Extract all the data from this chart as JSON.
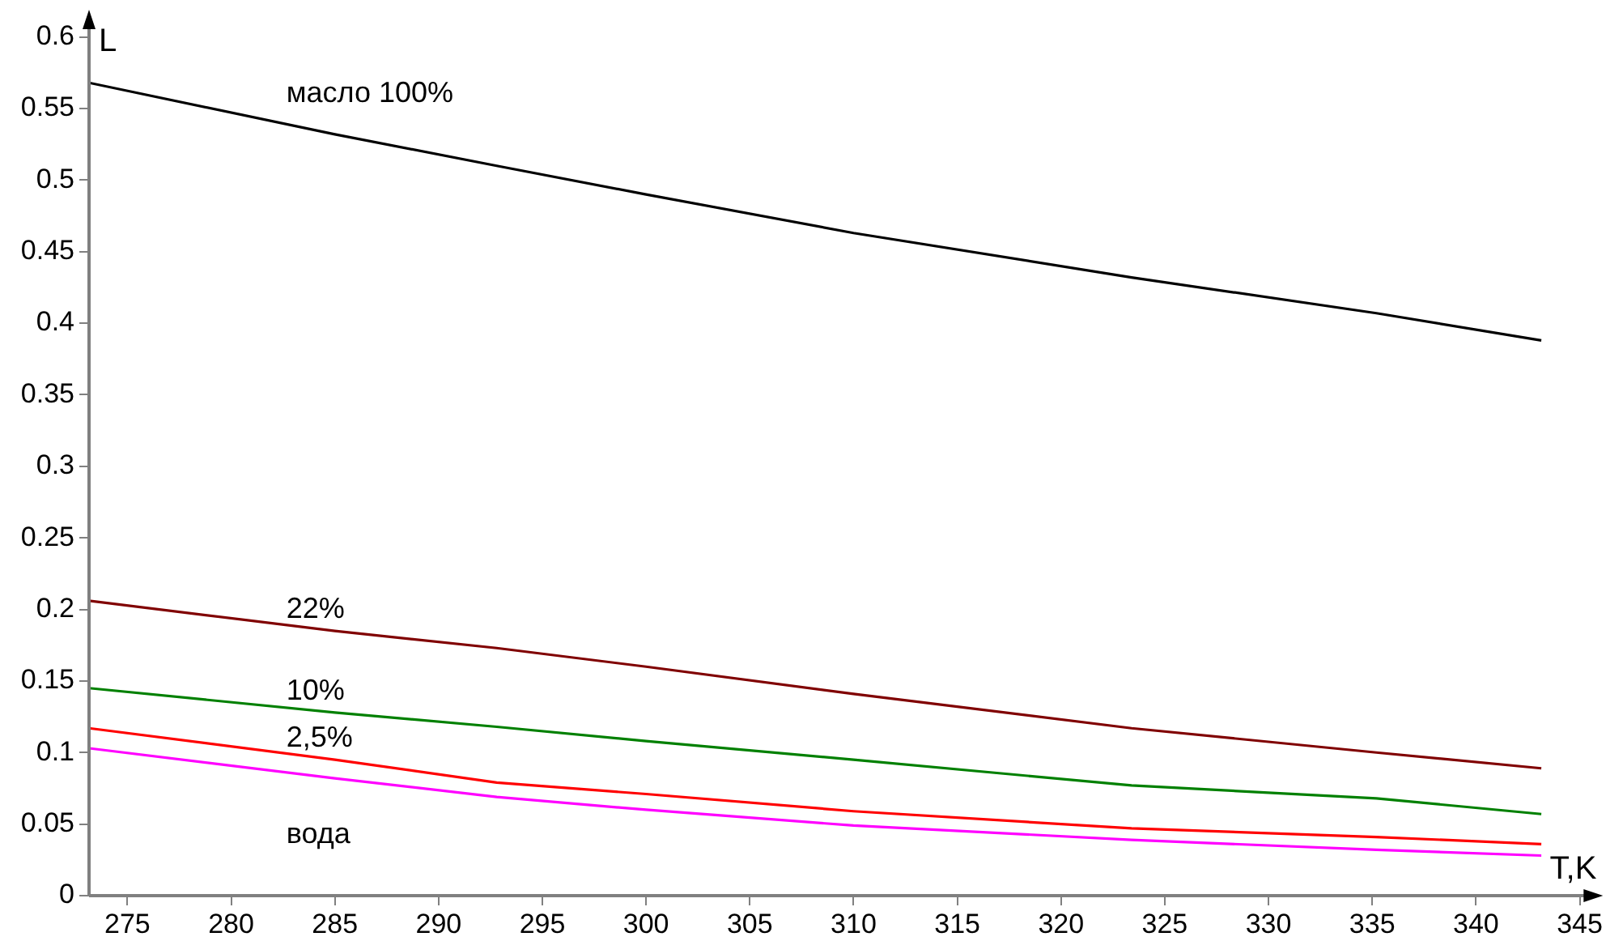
{
  "chart_data": {
    "type": "line",
    "xlabel": "T,K",
    "ylabel": "L",
    "x": [
      273.15,
      285,
      292.8,
      300,
      310,
      323.4,
      335.2,
      343.15
    ],
    "series": [
      {
        "name": "масло 100%",
        "color": "#000000",
        "values": [
          0.568,
          0.532,
          0.51,
          0.49,
          0.463,
          0.432,
          0.407,
          0.388
        ]
      },
      {
        "name": "22%",
        "color": "#800000",
        "values": [
          0.206,
          0.185,
          0.173,
          0.16,
          0.141,
          0.117,
          0.1,
          0.089
        ]
      },
      {
        "name": "10%",
        "color": "#008000",
        "values": [
          0.145,
          0.128,
          0.118,
          0.108,
          0.095,
          0.077,
          0.068,
          0.057
        ]
      },
      {
        "name": "2,5%",
        "color": "#ff0000",
        "values": [
          0.117,
          0.095,
          0.079,
          0.071,
          0.059,
          0.047,
          0.041,
          0.036
        ]
      },
      {
        "name": "вода",
        "color": "#ff00ff",
        "values": [
          0.103,
          0.082,
          0.069,
          0.06,
          0.049,
          0.039,
          0.032,
          0.028
        ]
      }
    ],
    "xlim": [
      273.15,
      345.5
    ],
    "xticks": [
      275,
      280,
      285,
      290,
      295,
      300,
      305,
      310,
      315,
      320,
      325,
      330,
      335,
      340,
      345
    ],
    "ylim": [
      0,
      0.61
    ],
    "yticks": [
      0,
      0.05,
      0.1,
      0.15,
      0.2,
      0.25,
      0.3,
      0.35,
      0.4,
      0.45,
      0.5,
      0.55,
      0.6
    ],
    "legend": false,
    "marker": "none",
    "line_style": "solid"
  }
}
